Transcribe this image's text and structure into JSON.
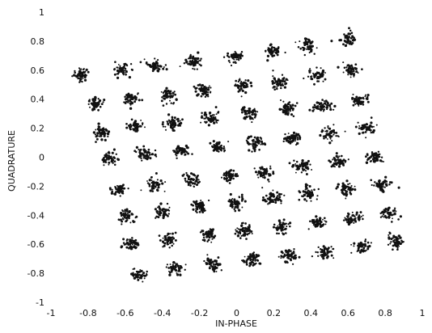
{
  "chart_data": {
    "type": "scatter",
    "title": "",
    "xlabel": "IN-PHASE",
    "ylabel": "QUADRATURE",
    "xlim": [
      -1,
      1
    ],
    "ylim": [
      -1,
      1
    ],
    "x_ticks": [
      "-1",
      "-0.8",
      "-0.6",
      "-0.4",
      "-0.2",
      "0",
      "0.2",
      "0.4",
      "0.6",
      "0.8",
      "1"
    ],
    "y_ticks": [
      "1",
      "0.8",
      "0.6",
      "0.4",
      "0.2",
      "0",
      "-0.2",
      "-0.4",
      "-0.6",
      "-0.8",
      "-1"
    ],
    "grid": false,
    "legend": "none",
    "point_color": "#111111",
    "description": "64-point constellation (8x8 grid), rotated slightly; each cluster is a scatter of noisy received symbols",
    "cluster_centers": [
      {
        "x": -0.84,
        "y": 0.57
      },
      {
        "x": -0.62,
        "y": 0.6
      },
      {
        "x": -0.44,
        "y": 0.63
      },
      {
        "x": -0.23,
        "y": 0.66
      },
      {
        "x": -0.02,
        "y": 0.69
      },
      {
        "x": 0.19,
        "y": 0.73
      },
      {
        "x": 0.38,
        "y": 0.77
      },
      {
        "x": 0.6,
        "y": 0.82
      },
      {
        "x": -0.77,
        "y": 0.37
      },
      {
        "x": -0.57,
        "y": 0.4
      },
      {
        "x": -0.37,
        "y": 0.43
      },
      {
        "x": -0.18,
        "y": 0.46
      },
      {
        "x": 0.03,
        "y": 0.49
      },
      {
        "x": 0.23,
        "y": 0.52
      },
      {
        "x": 0.43,
        "y": 0.56
      },
      {
        "x": 0.62,
        "y": 0.6
      },
      {
        "x": -0.73,
        "y": 0.17
      },
      {
        "x": -0.54,
        "y": 0.21
      },
      {
        "x": -0.34,
        "y": 0.24
      },
      {
        "x": -0.14,
        "y": 0.27
      },
      {
        "x": 0.07,
        "y": 0.3
      },
      {
        "x": 0.27,
        "y": 0.33
      },
      {
        "x": 0.46,
        "y": 0.35
      },
      {
        "x": 0.66,
        "y": 0.39
      },
      {
        "x": -0.68,
        "y": -0.01
      },
      {
        "x": -0.49,
        "y": 0.02
      },
      {
        "x": -0.3,
        "y": 0.04
      },
      {
        "x": -0.1,
        "y": 0.07
      },
      {
        "x": 0.1,
        "y": 0.1
      },
      {
        "x": 0.3,
        "y": 0.13
      },
      {
        "x": 0.5,
        "y": 0.16
      },
      {
        "x": 0.7,
        "y": 0.2
      },
      {
        "x": -0.63,
        "y": -0.22
      },
      {
        "x": -0.44,
        "y": -0.19
      },
      {
        "x": -0.24,
        "y": -0.16
      },
      {
        "x": -0.04,
        "y": -0.13
      },
      {
        "x": 0.15,
        "y": -0.1
      },
      {
        "x": 0.35,
        "y": -0.06
      },
      {
        "x": 0.55,
        "y": -0.03
      },
      {
        "x": 0.74,
        "y": 0.0
      },
      {
        "x": -0.59,
        "y": -0.41
      },
      {
        "x": -0.4,
        "y": -0.38
      },
      {
        "x": -0.2,
        "y": -0.34
      },
      {
        "x": 0.0,
        "y": -0.31
      },
      {
        "x": 0.19,
        "y": -0.28
      },
      {
        "x": 0.39,
        "y": -0.25
      },
      {
        "x": 0.59,
        "y": -0.22
      },
      {
        "x": 0.78,
        "y": -0.19
      },
      {
        "x": -0.56,
        "y": -0.6
      },
      {
        "x": -0.37,
        "y": -0.57
      },
      {
        "x": -0.16,
        "y": -0.54
      },
      {
        "x": 0.04,
        "y": -0.51
      },
      {
        "x": 0.24,
        "y": -0.48
      },
      {
        "x": 0.44,
        "y": -0.45
      },
      {
        "x": 0.63,
        "y": -0.42
      },
      {
        "x": 0.82,
        "y": -0.39
      },
      {
        "x": -0.53,
        "y": -0.81
      },
      {
        "x": -0.33,
        "y": -0.77
      },
      {
        "x": -0.13,
        "y": -0.74
      },
      {
        "x": 0.08,
        "y": -0.71
      },
      {
        "x": 0.28,
        "y": -0.68
      },
      {
        "x": 0.48,
        "y": -0.65
      },
      {
        "x": 0.67,
        "y": -0.62
      },
      {
        "x": 0.86,
        "y": -0.58
      }
    ]
  }
}
